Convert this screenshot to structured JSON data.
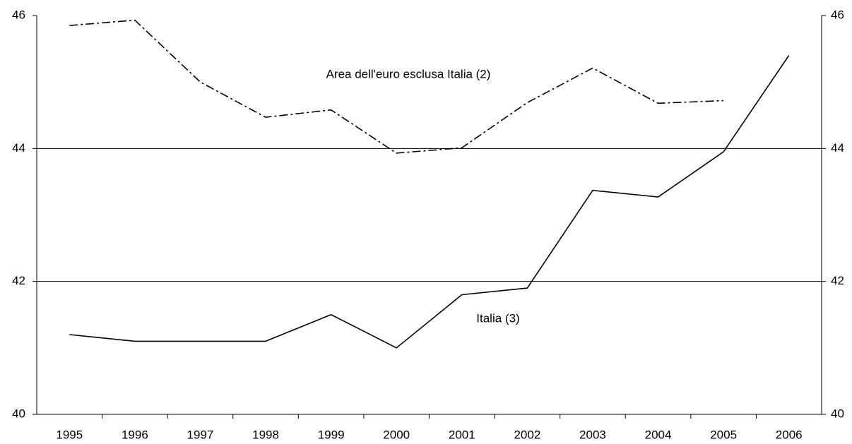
{
  "chart_data": {
    "type": "line",
    "categories": [
      "1995",
      "1996",
      "1997",
      "1998",
      "1999",
      "2000",
      "2001",
      "2002",
      "2003",
      "2004",
      "2005",
      "2006"
    ],
    "series": [
      {
        "name": "Area dell'euro esclusa Italia (2)",
        "color": "#000000",
        "dash": "dash-dot",
        "values": [
          45.85,
          45.93,
          45.0,
          44.47,
          44.58,
          43.93,
          44.01,
          44.69,
          45.21,
          44.68,
          44.72,
          null
        ]
      },
      {
        "name": "Italia (3)",
        "color": "#000000",
        "dash": "solid",
        "values": [
          41.2,
          41.1,
          41.1,
          41.1,
          41.5,
          41.0,
          41.8,
          41.9,
          43.37,
          43.27,
          43.95,
          45.4
        ]
      }
    ],
    "ylim": [
      40,
      46
    ],
    "yticks": [
      40,
      42,
      44,
      46
    ],
    "y2lim": [
      40,
      46
    ],
    "y2ticks": [
      40,
      42,
      44,
      46
    ],
    "grid": true
  }
}
